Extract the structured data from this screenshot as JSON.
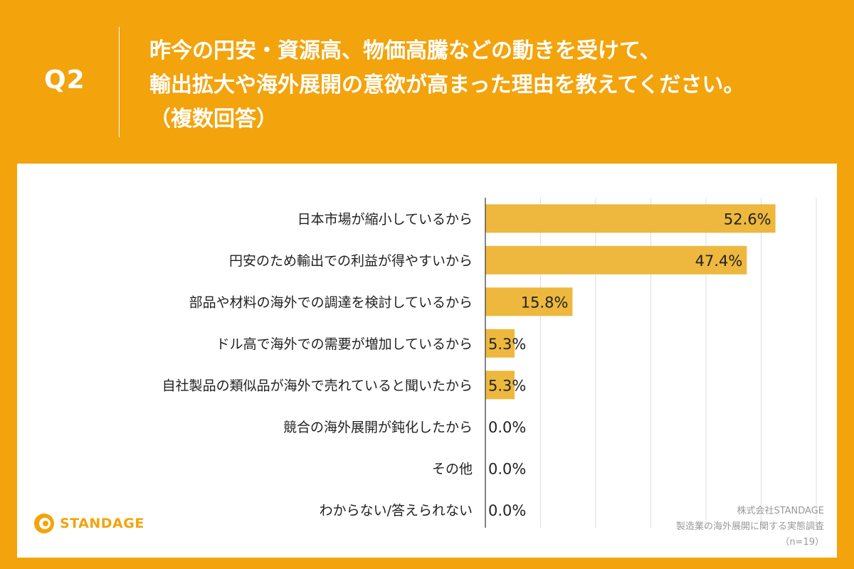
{
  "header": {
    "question_number": "Q2",
    "question_lines": [
      "昨今の円安・資源高、物価高騰などの動きを受けて、",
      "輸出拡大や海外展開の意欲が高まった理由を教えてください。",
      "（複数回答）"
    ]
  },
  "logo": {
    "name": "STANDAGE",
    "icon": "standage-logo-icon"
  },
  "source": {
    "company": "株式会社STANDAGE",
    "survey": "製造業の海外展開に関する実態調査",
    "sample": "（n=19）"
  },
  "colors": {
    "background": "#F3A30C",
    "bar": "#EDB83D",
    "grid": "#dddddd",
    "axis": "#333333",
    "text": "#222222"
  },
  "chart_data": {
    "type": "bar",
    "orientation": "horizontal",
    "categories": [
      "日本市場が縮小しているから",
      "円安のため輸出での利益が得やすいから",
      "部品や材料の海外での調達を検討しているから",
      "ドル高で海外での需要が増加しているから",
      "自社製品の類似品が海外で売れていると聞いたから",
      "競合の海外展開が鈍化したから",
      "その他",
      "わからない/答えられない"
    ],
    "values": [
      52.6,
      47.4,
      15.8,
      5.3,
      5.3,
      0.0,
      0.0,
      0.0
    ],
    "value_labels": [
      "52.6%",
      "47.4%",
      "15.8%",
      "5.3%",
      "5.3%",
      "0.0%",
      "0.0%",
      "0.0%"
    ],
    "xlim": [
      0,
      60
    ],
    "x_gridline_step": 10,
    "grid": true,
    "title": "",
    "xlabel": "",
    "ylabel": ""
  }
}
